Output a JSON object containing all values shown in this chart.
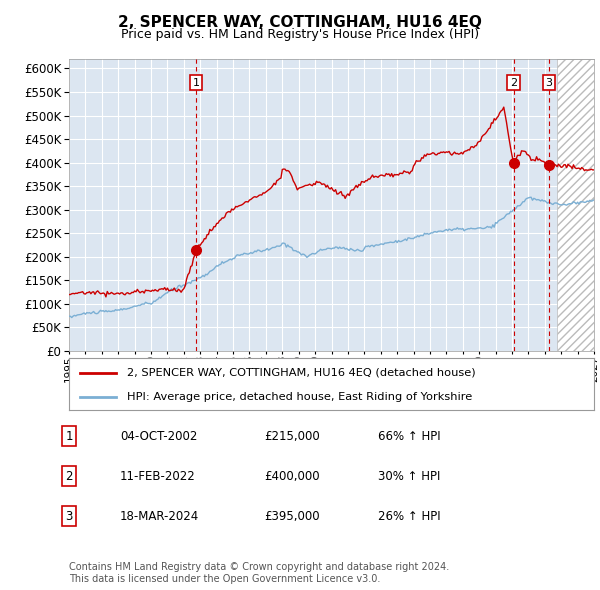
{
  "title": "2, SPENCER WAY, COTTINGHAM, HU16 4EQ",
  "subtitle": "Price paid vs. HM Land Registry's House Price Index (HPI)",
  "ylim": [
    0,
    620000
  ],
  "yticks": [
    0,
    50000,
    100000,
    150000,
    200000,
    250000,
    300000,
    350000,
    400000,
    450000,
    500000,
    550000,
    600000
  ],
  "xmin": 1995.0,
  "xmax": 2027.0,
  "sale_dates": [
    2002.75,
    2022.1,
    2024.25
  ],
  "sale_prices": [
    215000,
    400000,
    395000
  ],
  "sale_labels": [
    "1",
    "2",
    "3"
  ],
  "sale_info": [
    {
      "num": "1",
      "date": "04-OCT-2002",
      "price": "£215,000",
      "pct": "66% ↑ HPI"
    },
    {
      "num": "2",
      "date": "11-FEB-2022",
      "price": "£400,000",
      "pct": "30% ↑ HPI"
    },
    {
      "num": "3",
      "date": "18-MAR-2024",
      "price": "£395,000",
      "pct": "26% ↑ HPI"
    }
  ],
  "legend_line1": "2, SPENCER WAY, COTTINGHAM, HU16 4EQ (detached house)",
  "legend_line2": "HPI: Average price, detached house, East Riding of Yorkshire",
  "footer": "Contains HM Land Registry data © Crown copyright and database right 2024.\nThis data is licensed under the Open Government Licence v3.0.",
  "line_color_red": "#cc0000",
  "line_color_blue": "#7bafd4",
  "bg_color": "#dce6f1",
  "grid_color": "#ffffff",
  "hatch_start": 2024.75
}
